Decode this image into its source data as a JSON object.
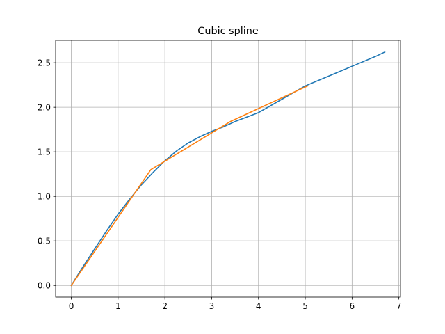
{
  "chart_data": {
    "type": "line",
    "title": "Cubic spline",
    "xlabel": "",
    "ylabel": "",
    "xlim": [
      -0.335,
      7.035
    ],
    "ylim": [
      -0.131,
      2.751
    ],
    "grid": true,
    "legend": "none",
    "x_ticks": [
      0,
      1,
      2,
      3,
      4,
      5,
      6,
      7
    ],
    "x_tick_labels": [
      "0",
      "1",
      "2",
      "3",
      "4",
      "5",
      "6",
      "7"
    ],
    "y_ticks": [
      0.0,
      0.5,
      1.0,
      1.5,
      2.0,
      2.5
    ],
    "y_tick_labels": [
      "0.0",
      "0.5",
      "1.0",
      "1.5",
      "2.0",
      "2.5"
    ],
    "series": [
      {
        "color": "#1f77b4",
        "x": [
          0,
          0.25,
          0.5,
          0.75,
          1.0,
          1.25,
          1.5,
          1.75,
          2.0,
          2.25,
          2.5,
          2.75,
          3.0,
          3.25,
          3.5,
          3.75,
          4.0,
          4.5,
          5.0,
          5.5,
          6.0,
          6.5,
          6.7
        ],
        "y": [
          0.0,
          0.21,
          0.41,
          0.61,
          0.8,
          0.97,
          1.13,
          1.27,
          1.4,
          1.51,
          1.6,
          1.67,
          1.73,
          1.78,
          1.84,
          1.89,
          1.94,
          2.09,
          2.24,
          2.35,
          2.46,
          2.57,
          2.62
        ]
      },
      {
        "color": "#ff7f0e",
        "x": [
          0,
          1.7,
          3.4,
          5.05
        ],
        "y": [
          0.0,
          1.3,
          1.84,
          2.24
        ]
      }
    ]
  }
}
